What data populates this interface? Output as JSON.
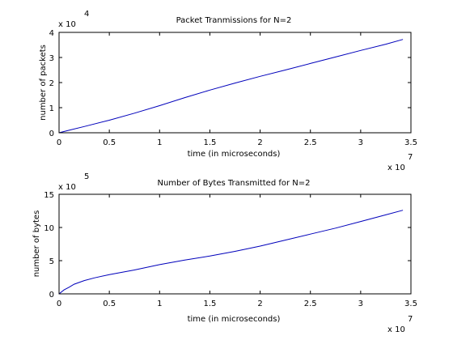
{
  "chart_data": [
    {
      "type": "line",
      "title": "Packet Tranmissions for N=2",
      "xlabel": "time (in microseconds)",
      "ylabel": "number of packets",
      "x_multiplier": "x 10",
      "x_exponent": "7",
      "y_multiplier": "x 10",
      "y_exponent": "4",
      "xlim": [
        0,
        3.5
      ],
      "ylim": [
        0,
        4
      ],
      "xticks": [
        0,
        0.5,
        1,
        1.5,
        2,
        2.5,
        3,
        3.5
      ],
      "xtick_labels": [
        "0",
        "0.5",
        "1",
        "1.5",
        "2",
        "2.5",
        "3",
        "3.5"
      ],
      "yticks": [
        0,
        1,
        2,
        3,
        4
      ],
      "ytick_labels": [
        "0",
        "1",
        "2",
        "3",
        "4"
      ],
      "line_color": "#0000bb",
      "x": [
        0,
        0.1,
        0.25,
        0.5,
        0.75,
        1.0,
        1.25,
        1.5,
        1.75,
        2.0,
        2.25,
        2.5,
        2.75,
        3.0,
        3.25,
        3.42
      ],
      "y": [
        0,
        0.1,
        0.25,
        0.5,
        0.78,
        1.08,
        1.4,
        1.7,
        1.98,
        2.25,
        2.5,
        2.76,
        3.02,
        3.28,
        3.53,
        3.72
      ]
    },
    {
      "type": "line",
      "title": "Number of Bytes Transmitted for N=2",
      "xlabel": "time (in microseconds)",
      "ylabel": "number of bytes",
      "x_multiplier": "x 10",
      "x_exponent": "7",
      "y_multiplier": "x 10",
      "y_exponent": "5",
      "xlim": [
        0,
        3.5
      ],
      "ylim": [
        0,
        15
      ],
      "xticks": [
        0,
        0.5,
        1,
        1.5,
        2,
        2.5,
        3,
        3.5
      ],
      "xtick_labels": [
        "0",
        "0.5",
        "1",
        "1.5",
        "2",
        "2.5",
        "3",
        "3.5"
      ],
      "yticks": [
        0,
        5,
        10,
        15
      ],
      "ytick_labels": [
        "0",
        "5",
        "10",
        "15"
      ],
      "line_color": "#0000bb",
      "x": [
        0,
        0.05,
        0.1,
        0.15,
        0.25,
        0.35,
        0.5,
        0.75,
        1.0,
        1.25,
        1.5,
        1.75,
        2.0,
        2.25,
        2.5,
        2.75,
        3.0,
        3.25,
        3.42
      ],
      "y": [
        0,
        0.6,
        1.0,
        1.45,
        2.0,
        2.4,
        2.9,
        3.6,
        4.4,
        5.1,
        5.7,
        6.4,
        7.2,
        8.1,
        9.0,
        9.9,
        10.9,
        11.9,
        12.6
      ]
    }
  ]
}
